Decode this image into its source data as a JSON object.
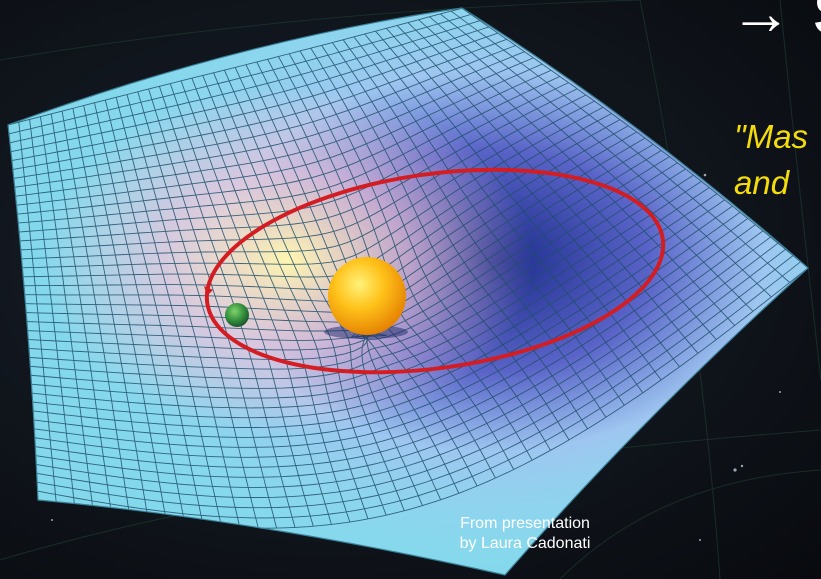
{
  "heading": "→ S",
  "quote": {
    "line1": "\"Mas",
    "line2": "and"
  },
  "credit": {
    "line1": "From presentation",
    "line2": "by Laura Cadonati"
  },
  "colors": {
    "space": "#0d1116",
    "fabric": "#7fd6ea",
    "grid_line": "#1f4f6a",
    "orbit": "#d41d22",
    "sun": "#ffb31a",
    "planet": "#2f8a3a",
    "quote_text": "#f3dc0a"
  },
  "icons": {
    "sun": "sun-icon",
    "planet": "planet-icon",
    "orbit": "orbit-path"
  }
}
